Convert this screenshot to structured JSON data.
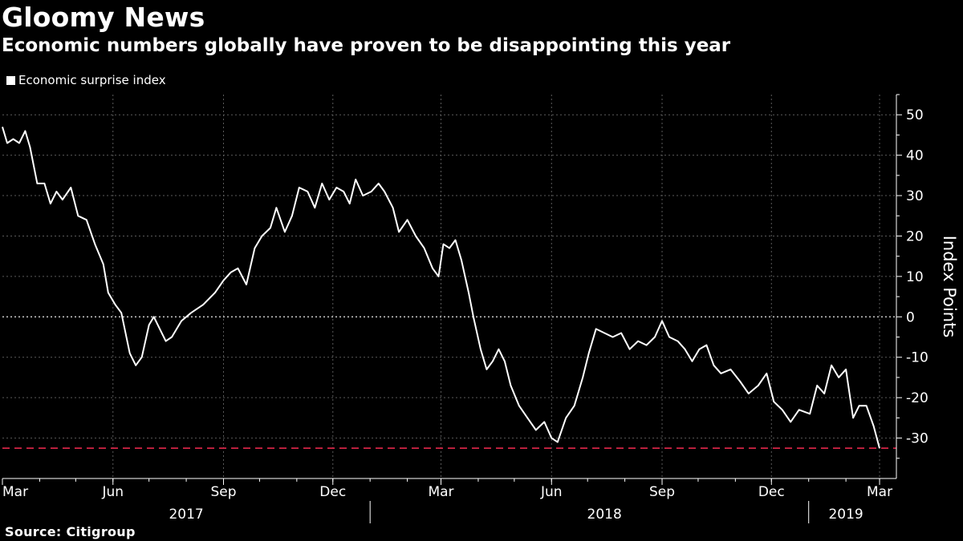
{
  "header": {
    "title": "Gloomy News",
    "subtitle": "Economic numbers globally have proven to be disappointing this year"
  },
  "legend": {
    "label": "Economic surprise index"
  },
  "footer": {
    "source": "Source:  Citigroup"
  },
  "colors": {
    "background": "#000000",
    "series": "#ffffff",
    "grid": "#5a5a5a",
    "reference": "#e0264a"
  },
  "chart_data": {
    "type": "line",
    "title": "Gloomy News",
    "subtitle": "Economic numbers globally have proven to be disappointing this year",
    "ylabel": "Index Points",
    "y_axis_side": "right",
    "ylim": [
      -40,
      55
    ],
    "y_ticks": [
      50,
      40,
      30,
      20,
      10,
      0,
      -10,
      -20,
      -30
    ],
    "x_range": [
      "2017-03-01",
      "2019-03-15"
    ],
    "x_ticks": [
      {
        "date": "2017-03-01",
        "label": "Mar"
      },
      {
        "date": "2017-06-01",
        "label": "Jun"
      },
      {
        "date": "2017-09-01",
        "label": "Sep"
      },
      {
        "date": "2017-12-01",
        "label": "Dec"
      },
      {
        "date": "2018-03-01",
        "label": "Mar"
      },
      {
        "date": "2018-06-01",
        "label": "Jun"
      },
      {
        "date": "2018-09-01",
        "label": "Sep"
      },
      {
        "date": "2018-12-01",
        "label": "Dec"
      },
      {
        "date": "2019-03-01",
        "label": "Mar"
      }
    ],
    "year_labels": [
      {
        "label": "2017",
        "date": "2017-08-01"
      },
      {
        "label": "2018",
        "date": "2018-07-15"
      },
      {
        "label": "2019",
        "date": "2019-02-01"
      }
    ],
    "year_dividers": [
      "2018-01-01",
      "2019-01-01"
    ],
    "grid": true,
    "legend_position": "top-left",
    "reference_lines": [
      {
        "y": 0,
        "style": "dotted",
        "color": "#bfbfbf"
      },
      {
        "y": -32.5,
        "style": "dashed",
        "color": "#e0264a"
      }
    ],
    "series": [
      {
        "name": "Economic surprise index",
        "points": [
          [
            "2017-03-01",
            47
          ],
          [
            "2017-03-05",
            43
          ],
          [
            "2017-03-10",
            44
          ],
          [
            "2017-03-15",
            43
          ],
          [
            "2017-03-20",
            46
          ],
          [
            "2017-03-24",
            42
          ],
          [
            "2017-03-30",
            33
          ],
          [
            "2017-04-05",
            33
          ],
          [
            "2017-04-10",
            28
          ],
          [
            "2017-04-15",
            31
          ],
          [
            "2017-04-20",
            29
          ],
          [
            "2017-04-27",
            32
          ],
          [
            "2017-05-03",
            25
          ],
          [
            "2017-05-10",
            24
          ],
          [
            "2017-05-17",
            18
          ],
          [
            "2017-05-24",
            13
          ],
          [
            "2017-05-28",
            6
          ],
          [
            "2017-06-03",
            3
          ],
          [
            "2017-06-08",
            1
          ],
          [
            "2017-06-15",
            -9
          ],
          [
            "2017-06-20",
            -12
          ],
          [
            "2017-06-25",
            -10
          ],
          [
            "2017-07-01",
            -2
          ],
          [
            "2017-07-05",
            0
          ],
          [
            "2017-07-10",
            -3
          ],
          [
            "2017-07-15",
            -6
          ],
          [
            "2017-07-20",
            -5
          ],
          [
            "2017-07-28",
            -1
          ],
          [
            "2017-08-05",
            1
          ],
          [
            "2017-08-15",
            3
          ],
          [
            "2017-08-25",
            6
          ],
          [
            "2017-09-01",
            9
          ],
          [
            "2017-09-07",
            11
          ],
          [
            "2017-09-13",
            12
          ],
          [
            "2017-09-20",
            8
          ],
          [
            "2017-09-27",
            17
          ],
          [
            "2017-10-03",
            20
          ],
          [
            "2017-10-10",
            22
          ],
          [
            "2017-10-15",
            27
          ],
          [
            "2017-10-22",
            21
          ],
          [
            "2017-10-28",
            25
          ],
          [
            "2017-11-03",
            32
          ],
          [
            "2017-11-10",
            31
          ],
          [
            "2017-11-16",
            27
          ],
          [
            "2017-11-22",
            33
          ],
          [
            "2017-11-28",
            29
          ],
          [
            "2017-12-04",
            32
          ],
          [
            "2017-12-10",
            31
          ],
          [
            "2017-12-15",
            28
          ],
          [
            "2017-12-20",
            34
          ],
          [
            "2017-12-26",
            30
          ],
          [
            "2018-01-02",
            31
          ],
          [
            "2018-01-08",
            33
          ],
          [
            "2018-01-13",
            31
          ],
          [
            "2018-01-20",
            27
          ],
          [
            "2018-01-25",
            21
          ],
          [
            "2018-02-01",
            24
          ],
          [
            "2018-02-08",
            20
          ],
          [
            "2018-02-15",
            17
          ],
          [
            "2018-02-22",
            12
          ],
          [
            "2018-02-27",
            10
          ],
          [
            "2018-03-03",
            18
          ],
          [
            "2018-03-08",
            17
          ],
          [
            "2018-03-13",
            19
          ],
          [
            "2018-03-18",
            14
          ],
          [
            "2018-03-24",
            6
          ],
          [
            "2018-03-28",
            0
          ],
          [
            "2018-04-03",
            -8
          ],
          [
            "2018-04-08",
            -13
          ],
          [
            "2018-04-13",
            -11
          ],
          [
            "2018-04-18",
            -8
          ],
          [
            "2018-04-23",
            -11
          ],
          [
            "2018-04-28",
            -17
          ],
          [
            "2018-05-05",
            -22
          ],
          [
            "2018-05-12",
            -25
          ],
          [
            "2018-05-19",
            -28
          ],
          [
            "2018-05-26",
            -26
          ],
          [
            "2018-06-01",
            -30
          ],
          [
            "2018-06-06",
            -31
          ],
          [
            "2018-06-13",
            -25
          ],
          [
            "2018-06-20",
            -22
          ],
          [
            "2018-06-27",
            -15
          ],
          [
            "2018-07-02",
            -9
          ],
          [
            "2018-07-08",
            -3
          ],
          [
            "2018-07-15",
            -4
          ],
          [
            "2018-07-22",
            -5
          ],
          [
            "2018-07-29",
            -4
          ],
          [
            "2018-08-05",
            -8
          ],
          [
            "2018-08-12",
            -6
          ],
          [
            "2018-08-19",
            -7
          ],
          [
            "2018-08-26",
            -5
          ],
          [
            "2018-09-01",
            -1
          ],
          [
            "2018-09-07",
            -5
          ],
          [
            "2018-09-14",
            -6
          ],
          [
            "2018-09-20",
            -8
          ],
          [
            "2018-09-26",
            -11
          ],
          [
            "2018-10-02",
            -8
          ],
          [
            "2018-10-08",
            -7
          ],
          [
            "2018-10-14",
            -12
          ],
          [
            "2018-10-20",
            -14
          ],
          [
            "2018-10-28",
            -13
          ],
          [
            "2018-11-05",
            -16
          ],
          [
            "2018-11-12",
            -19
          ],
          [
            "2018-11-20",
            -17
          ],
          [
            "2018-11-27",
            -14
          ],
          [
            "2018-12-03",
            -21
          ],
          [
            "2018-12-10",
            -23
          ],
          [
            "2018-12-17",
            -26
          ],
          [
            "2018-12-24",
            -23
          ],
          [
            "2019-01-02",
            -24
          ],
          [
            "2019-01-08",
            -17
          ],
          [
            "2019-01-14",
            -19
          ],
          [
            "2019-01-20",
            -12
          ],
          [
            "2019-01-26",
            -15
          ],
          [
            "2019-02-01",
            -13
          ],
          [
            "2019-02-07",
            -25
          ],
          [
            "2019-02-12",
            -22
          ],
          [
            "2019-02-18",
            -22
          ],
          [
            "2019-02-24",
            -27
          ],
          [
            "2019-03-01",
            -32.5
          ]
        ]
      }
    ]
  }
}
